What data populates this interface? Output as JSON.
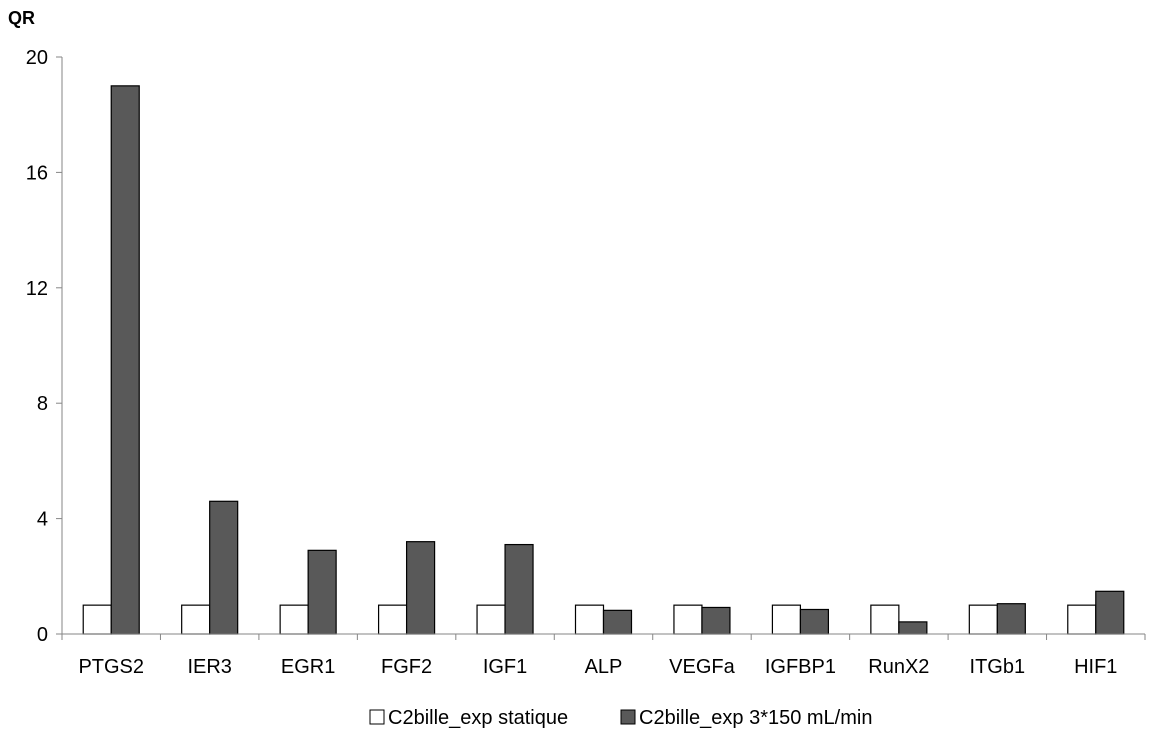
{
  "chart_data": {
    "type": "bar",
    "title": "",
    "xlabel": "",
    "ylabel": "QR",
    "ylim": [
      0,
      20
    ],
    "yticks": [
      0,
      4,
      8,
      12,
      16,
      20
    ],
    "grid": false,
    "legend_position": "bottom",
    "categories": [
      "PTGS2",
      "IER3",
      "EGR1",
      "FGF2",
      "IGF1",
      "ALP",
      "VEGFa",
      "IGFBP1",
      "RunX2",
      "ITGb1",
      "HIF1"
    ],
    "series": [
      {
        "name": "C2bille_exp statique",
        "color": "#ffffff",
        "values": [
          1,
          1,
          1,
          1,
          1,
          1,
          1,
          1,
          1,
          1,
          1
        ]
      },
      {
        "name": "C2bille_exp 3*150 mL/min",
        "color": "#595959",
        "values": [
          19,
          4.6,
          2.9,
          3.2,
          3.1,
          0.82,
          0.92,
          0.85,
          0.42,
          1.05,
          1.48
        ]
      }
    ]
  }
}
